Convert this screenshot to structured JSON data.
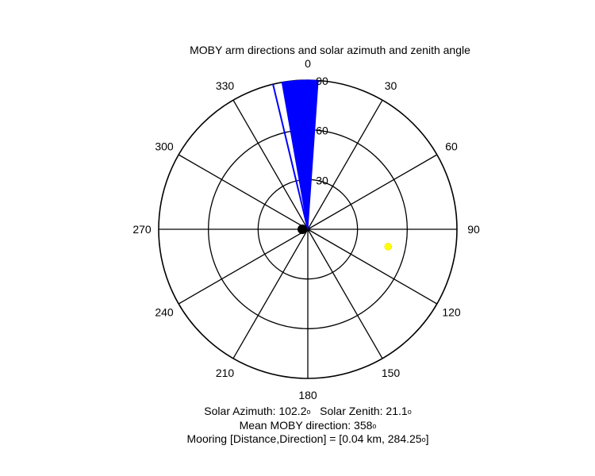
{
  "chart_data": {
    "type": "polar",
    "title": "MOBY arm directions and solar azimuth and zenith angle",
    "angle_ticks": [
      "0",
      "30",
      "60",
      "90",
      "120",
      "150",
      "180",
      "210",
      "240",
      "270",
      "300",
      "330"
    ],
    "radial_ticks": [
      "30",
      "60",
      "90"
    ],
    "radial_max": 90,
    "angle_orientation": "clockwise from north",
    "grid": true,
    "moby_arm_directions": {
      "color": "#0000ff",
      "wedge_from_deg": 350,
      "wedge_to_deg": 4,
      "outlier_line_deg": 346.5
    },
    "solar_position": {
      "azimuth": 102.2,
      "zenith": 21.1,
      "color": "#ffff00"
    },
    "mean_moby_direction": 358,
    "mooring": {
      "distance_km": 0.04,
      "direction": 284.25
    },
    "captions": {
      "solar_azimuth_label": "Solar Azimuth: 102.2",
      "solar_zenith_label": "Solar Zenith: 21.1",
      "mean_direction_label": "Mean MOBY direction: 358",
      "mooring_label": "Mooring [Distance,Direction] = [0.04 km, 284.25",
      "mooring_close": "]",
      "degree_symbol": "o"
    }
  }
}
